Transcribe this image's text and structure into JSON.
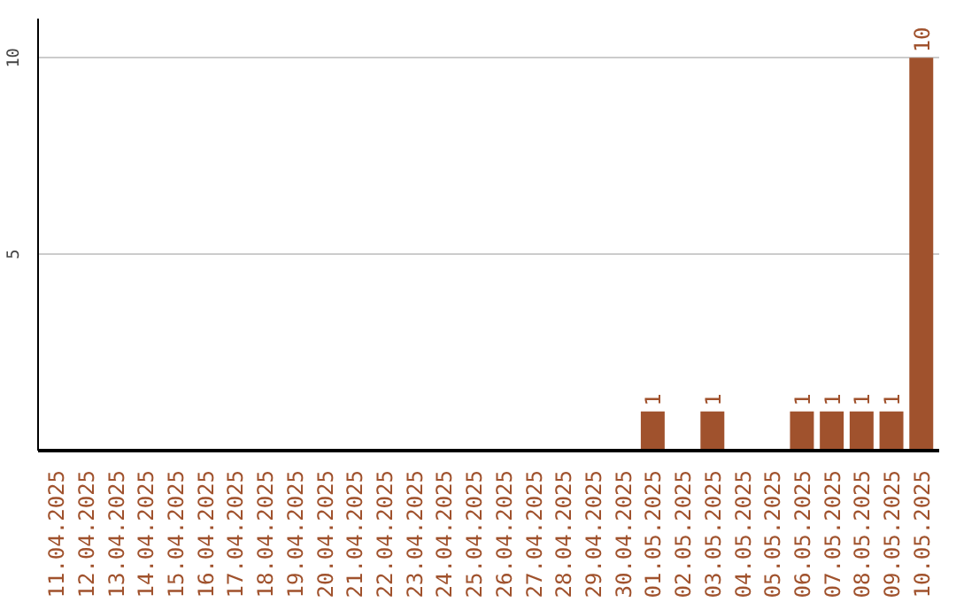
{
  "chart_data": {
    "type": "bar",
    "categories": [
      "11.04.2025",
      "12.04.2025",
      "13.04.2025",
      "14.04.2025",
      "15.04.2025",
      "16.04.2025",
      "17.04.2025",
      "18.04.2025",
      "19.04.2025",
      "20.04.2025",
      "21.04.2025",
      "22.04.2025",
      "23.04.2025",
      "24.04.2025",
      "25.04.2025",
      "26.04.2025",
      "27.04.2025",
      "28.04.2025",
      "29.04.2025",
      "30.04.2025",
      "01.05.2025",
      "02.05.2025",
      "03.05.2025",
      "04.05.2025",
      "05.05.2025",
      "06.05.2025",
      "07.05.2025",
      "08.05.2025",
      "09.05.2025",
      "10.05.2025"
    ],
    "values": [
      0,
      0,
      0,
      0,
      0,
      0,
      0,
      0,
      0,
      0,
      0,
      0,
      0,
      0,
      0,
      0,
      0,
      0,
      0,
      0,
      1,
      0,
      1,
      0,
      0,
      1,
      1,
      1,
      1,
      10
    ],
    "value_labels": [
      null,
      null,
      null,
      null,
      null,
      null,
      null,
      null,
      null,
      null,
      null,
      null,
      null,
      null,
      null,
      null,
      null,
      null,
      null,
      null,
      "1",
      null,
      "1",
      null,
      null,
      "1",
      "1",
      "1",
      "1",
      "10"
    ],
    "color": "#a0522d",
    "ylim": [
      0,
      11
    ],
    "yticks": [
      5,
      10
    ],
    "grid": "y"
  }
}
